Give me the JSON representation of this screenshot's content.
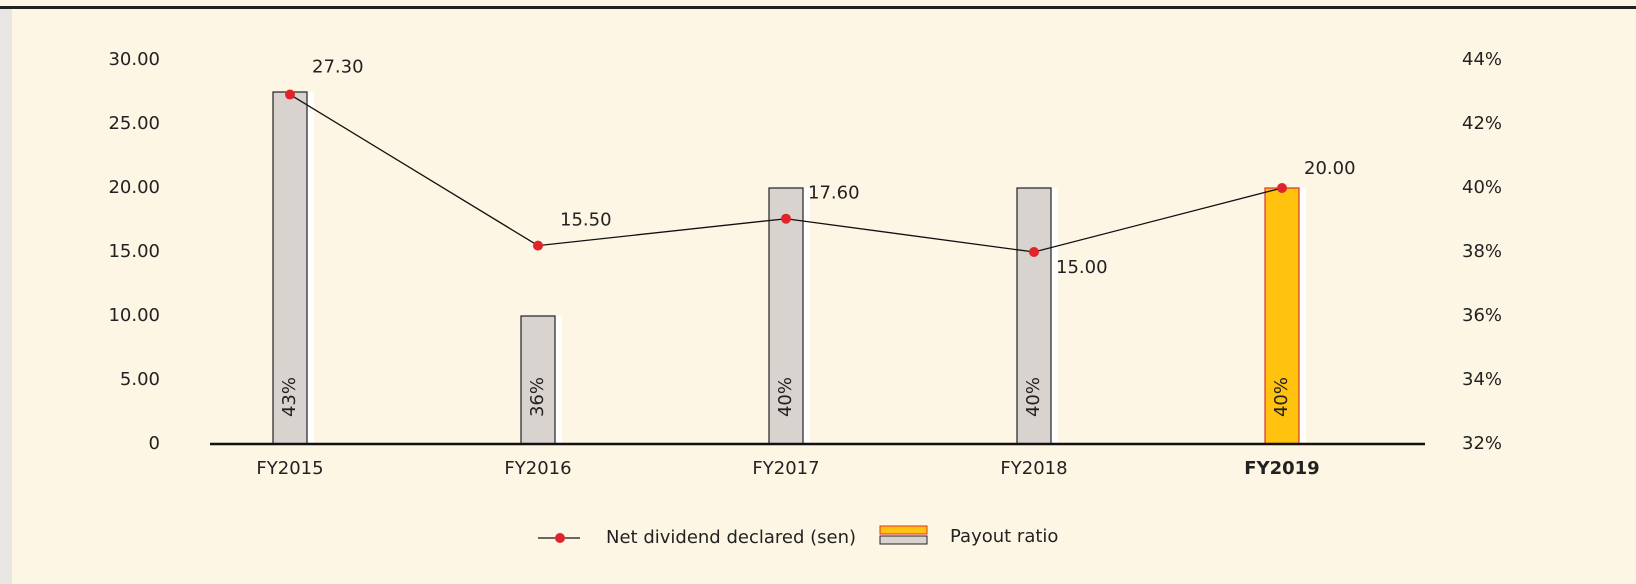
{
  "chart_data": {
    "type": "bar_line",
    "categories": [
      "FY2015",
      "FY2016",
      "FY2017",
      "FY2018",
      "FY2019"
    ],
    "highlight": 4,
    "series": [
      {
        "name": "Payout ratio",
        "type": "bar",
        "axis": "y2",
        "color": "#d9d3d0",
        "highlight_color": "#ffc20e",
        "highlight_border": "#d9342b",
        "values": [
          43,
          36,
          40,
          40,
          40
        ],
        "value_labels": [
          "43%",
          "36%",
          "40%",
          "40%",
          "40%"
        ]
      },
      {
        "name": "Net dividend declared (sen)",
        "type": "line",
        "axis": "y",
        "color": "#e0242a",
        "values": [
          27.3,
          15.5,
          17.6,
          15.0,
          20.0
        ],
        "value_labels": [
          "27.30",
          "15.50",
          "17.60",
          "15.00",
          "20.00"
        ]
      }
    ],
    "ylim": [
      0,
      30
    ],
    "yticks": [
      0,
      {
        "value": 5,
        "label": "5.00"
      },
      {
        "value": 10,
        "label": "10.00"
      },
      {
        "value": 15,
        "label": "15.00"
      },
      {
        "value": 20,
        "label": "20.00"
      },
      {
        "value": 25,
        "label": "25.00"
      },
      {
        "value": 30,
        "label": "30.00"
      }
    ],
    "y2lim": [
      32,
      44
    ],
    "y2ticks": [
      {
        "value": 32,
        "label": "32%"
      },
      {
        "value": 34,
        "label": "34%"
      },
      {
        "value": 36,
        "label": "36%"
      },
      {
        "value": 38,
        "label": "38%"
      },
      {
        "value": 40,
        "label": "40%"
      },
      {
        "value": 42,
        "label": "42%"
      },
      {
        "value": 44,
        "label": "44%"
      }
    ],
    "legend": "bottom"
  }
}
